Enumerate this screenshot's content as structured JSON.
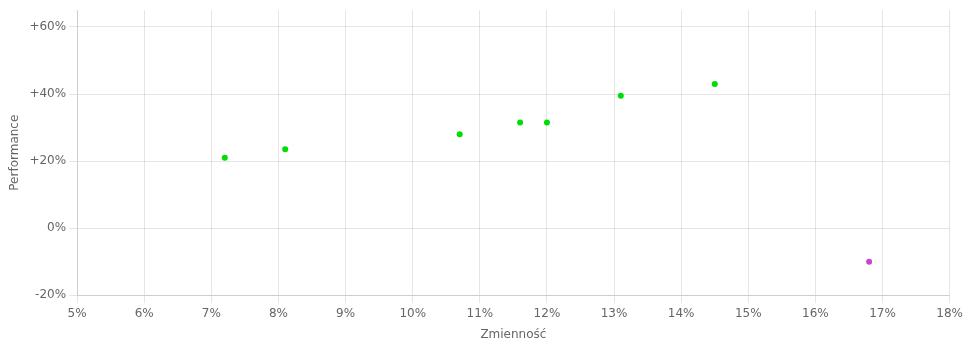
{
  "chart_data": {
    "type": "scatter",
    "xlabel": "Zmienność",
    "ylabel": "Performance",
    "xlim": [
      0.05,
      0.18
    ],
    "ylim": [
      -0.2,
      0.65
    ],
    "xticks": [
      {
        "value": 0.05,
        "label": "5%"
      },
      {
        "value": 0.06,
        "label": "6%"
      },
      {
        "value": 0.07,
        "label": "7%"
      },
      {
        "value": 0.08,
        "label": "8%"
      },
      {
        "value": 0.09,
        "label": "9%"
      },
      {
        "value": 0.1,
        "label": "10%"
      },
      {
        "value": 0.11,
        "label": "11%"
      },
      {
        "value": 0.12,
        "label": "12%"
      },
      {
        "value": 0.13,
        "label": "13%"
      },
      {
        "value": 0.14,
        "label": "14%"
      },
      {
        "value": 0.15,
        "label": "15%"
      },
      {
        "value": 0.16,
        "label": "16%"
      },
      {
        "value": 0.17,
        "label": "17%"
      },
      {
        "value": 0.18,
        "label": "18%"
      }
    ],
    "yticks": [
      {
        "value": -0.2,
        "label": "-20%"
      },
      {
        "value": 0.0,
        "label": "0%"
      },
      {
        "value": 0.2,
        "label": "+20%"
      },
      {
        "value": 0.4,
        "label": "+40%"
      },
      {
        "value": 0.6,
        "label": "+60%"
      }
    ],
    "grid": true,
    "series": [
      {
        "color": "#00dd00",
        "x": [
          0.072,
          0.081,
          0.107,
          0.116,
          0.12,
          0.131,
          0.145
        ],
        "values": [
          0.21,
          0.235,
          0.28,
          0.315,
          0.315,
          0.395,
          0.43
        ]
      },
      {
        "color": "#cc44cc",
        "x": [
          0.168
        ],
        "values": [
          -0.1
        ]
      }
    ]
  }
}
